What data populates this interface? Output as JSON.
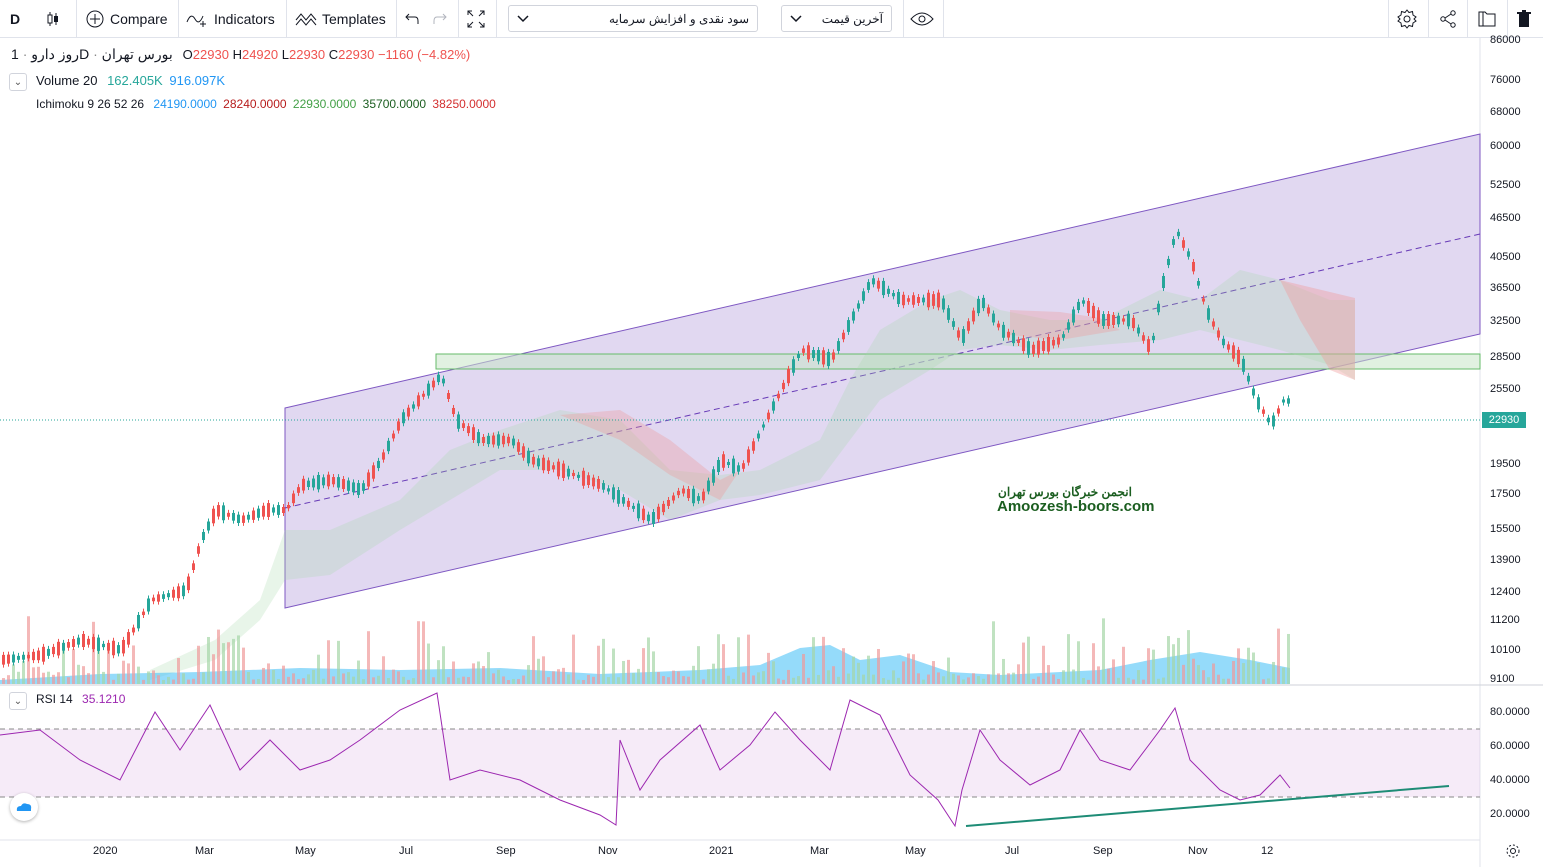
{
  "toolbar": {
    "symbol": "D",
    "compare_label": "Compare",
    "indicators_label": "Indicators",
    "templates_label": "Templates",
    "dropdown1": "سود نقدی و افزایش سرمایه",
    "dropdown2": "آخرین قیمت"
  },
  "legend": {
    "symbol_name": "روز دارو",
    "exchange": "بورس تهران",
    "interval": "1D",
    "open_label": "O",
    "open": "22930",
    "high_label": "H",
    "high": "24920",
    "low_label": "L",
    "low": "22930",
    "close_label": "C",
    "close": "22930",
    "change": "−1160 (−4.82%)",
    "volume_title": "Volume 20",
    "volume_v1": "162.405K",
    "volume_v2": "916.097K",
    "ichimoku_title": "Ichimoku 9 26 52 26",
    "ichi_v1": "24190.0000",
    "ichi_v2": "28240.0000",
    "ichi_v3": "22930.0000",
    "ichi_v4": "35700.0000",
    "ichi_v5": "38250.0000",
    "rsi_title": "RSI 14",
    "rsi_value": "35.1210"
  },
  "watermark": {
    "line1": "انجمن خبرگان بورس تهران",
    "line2": "Amoozesh-boors.com"
  },
  "price_axis": [
    "86000",
    "76000",
    "68000",
    "60000",
    "52500",
    "46500",
    "40500",
    "36500",
    "32500",
    "28500",
    "25500",
    "19500",
    "17500",
    "15500",
    "13900",
    "12400",
    "11200",
    "10100",
    "9100"
  ],
  "last_price": "22930",
  "rsi_axis": [
    "80.0000",
    "60.0000",
    "40.0000",
    "20.0000"
  ],
  "time_axis": [
    "2020",
    "Mar",
    "May",
    "Jul",
    "Sep",
    "Nov",
    "2021",
    "Mar",
    "May",
    "Jul",
    "Sep",
    "Nov",
    "12"
  ],
  "colors": {
    "up": "#26a69a",
    "down": "#ef5350",
    "channel": "#7e57c2",
    "rsi": "#9c27b0",
    "trendline": "#1e8c76"
  }
}
